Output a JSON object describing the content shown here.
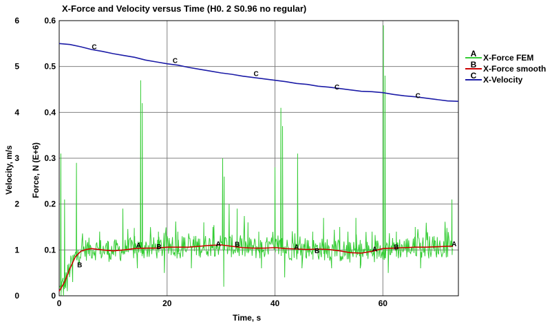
{
  "chart_data": {
    "type": "line",
    "title": "X-Force and Velocity versus Time (H0. 2  S0.96 no  regular)",
    "xlabel": "Time, s",
    "ylabel_left": "Velocity, m/s",
    "ylabel_right": "Force, N  (E+6)",
    "xlim": [
      0,
      74
    ],
    "ylim_left": [
      0,
      6
    ],
    "ylim_right": [
      0,
      0.6
    ],
    "x_ticks": [
      "0",
      "20",
      "40",
      "60"
    ],
    "y_left_ticks": [
      "0",
      "1",
      "2",
      "3",
      "4",
      "5",
      "6"
    ],
    "y_right_ticks": [
      "0",
      "0.1",
      "0.2",
      "0.3",
      "0.4",
      "0.5",
      "0.6"
    ],
    "grid": true,
    "legend_position": "right",
    "series": [
      {
        "name": "X-Force FEM",
        "marker": "A",
        "color": "#33cc33",
        "axis": "right",
        "spikes": [
          [
            0.3,
            0.31
          ],
          [
            1.0,
            0.21
          ],
          [
            3.2,
            0.29
          ],
          [
            7.5,
            0.14
          ],
          [
            9.0,
            0.12
          ],
          [
            11.8,
            0.19
          ],
          [
            14.0,
            0.13
          ],
          [
            15.1,
            0.47
          ],
          [
            15.4,
            0.42
          ],
          [
            18.4,
            0.14
          ],
          [
            22.0,
            0.14
          ],
          [
            25.0,
            0.13
          ],
          [
            26.8,
            0.16
          ],
          [
            28.5,
            0.15
          ],
          [
            30.3,
            0.3
          ],
          [
            30.6,
            0.26
          ],
          [
            31.5,
            0.2
          ],
          [
            33.0,
            0.19
          ],
          [
            35.0,
            0.16
          ],
          [
            37.0,
            0.14
          ],
          [
            40.0,
            0.28
          ],
          [
            41.1,
            0.41
          ],
          [
            41.4,
            0.37
          ],
          [
            44.2,
            0.31
          ],
          [
            47.0,
            0.14
          ],
          [
            49.0,
            0.17
          ],
          [
            52.0,
            0.15
          ],
          [
            55.0,
            0.17
          ],
          [
            58.0,
            0.14
          ],
          [
            60.1,
            0.59
          ],
          [
            60.4,
            0.48
          ],
          [
            62.5,
            0.14
          ],
          [
            66.0,
            0.15
          ],
          [
            69.5,
            0.13
          ],
          [
            72.8,
            0.21
          ]
        ],
        "dips": [
          [
            0.8,
            0.0
          ],
          [
            1.5,
            0.01
          ],
          [
            2.5,
            0.03
          ],
          [
            14.5,
            0.06
          ],
          [
            19.5,
            0.05
          ],
          [
            24.5,
            0.06
          ],
          [
            30.5,
            0.02
          ],
          [
            37.5,
            0.06
          ],
          [
            41.8,
            0.04
          ],
          [
            45.0,
            0.06
          ],
          [
            50.5,
            0.06
          ],
          [
            55.8,
            0.06
          ],
          [
            61.0,
            0.05
          ],
          [
            67.0,
            0.06
          ]
        ],
        "baseline_label_points": [
          [
            14.7,
            0.111
          ],
          [
            29.5,
            0.114
          ],
          [
            44.0,
            0.107
          ],
          [
            58.5,
            0.103
          ],
          [
            73.2,
            0.114
          ]
        ]
      },
      {
        "name": "X-Force smooth",
        "marker": "B",
        "color": "#cc0000",
        "axis": "right",
        "points": [
          [
            0,
            0.01
          ],
          [
            1,
            0.03
          ],
          [
            2,
            0.06
          ],
          [
            3,
            0.085
          ],
          [
            4,
            0.097
          ],
          [
            5,
            0.101
          ],
          [
            6,
            0.103
          ],
          [
            8,
            0.1
          ],
          [
            10,
            0.098
          ],
          [
            12,
            0.1
          ],
          [
            14,
            0.103
          ],
          [
            16,
            0.104
          ],
          [
            18,
            0.104
          ],
          [
            20,
            0.106
          ],
          [
            22,
            0.106
          ],
          [
            24,
            0.106
          ],
          [
            26,
            0.108
          ],
          [
            28,
            0.11
          ],
          [
            30,
            0.111
          ],
          [
            32,
            0.108
          ],
          [
            34,
            0.105
          ],
          [
            36,
            0.104
          ],
          [
            38,
            0.104
          ],
          [
            40,
            0.105
          ],
          [
            42,
            0.103
          ],
          [
            44,
            0.102
          ],
          [
            46,
            0.101
          ],
          [
            48,
            0.102
          ],
          [
            50,
            0.101
          ],
          [
            52,
            0.098
          ],
          [
            54,
            0.094
          ],
          [
            56,
            0.093
          ],
          [
            58,
            0.097
          ],
          [
            60,
            0.103
          ],
          [
            62,
            0.104
          ],
          [
            64,
            0.105
          ],
          [
            66,
            0.106
          ],
          [
            68,
            0.106
          ],
          [
            70,
            0.107
          ],
          [
            72,
            0.108
          ],
          [
            73,
            0.108
          ]
        ],
        "label_points": [
          [
            3.8,
            0.068
          ],
          [
            18.5,
            0.108
          ],
          [
            33.0,
            0.113
          ],
          [
            47.8,
            0.099
          ],
          [
            62.5,
            0.107
          ]
        ]
      },
      {
        "name": "X-Velocity",
        "marker": "C",
        "color": "#1a1aa6",
        "axis": "left",
        "points": [
          [
            0,
            5.5
          ],
          [
            2,
            5.48
          ],
          [
            4,
            5.43
          ],
          [
            6,
            5.37
          ],
          [
            8,
            5.33
          ],
          [
            10,
            5.28
          ],
          [
            12,
            5.24
          ],
          [
            14,
            5.2
          ],
          [
            16,
            5.14
          ],
          [
            18,
            5.1
          ],
          [
            20,
            5.06
          ],
          [
            22,
            5.03
          ],
          [
            24,
            4.98
          ],
          [
            26,
            4.94
          ],
          [
            28,
            4.9
          ],
          [
            30,
            4.86
          ],
          [
            32,
            4.83
          ],
          [
            34,
            4.79
          ],
          [
            36,
            4.76
          ],
          [
            38,
            4.73
          ],
          [
            40,
            4.7
          ],
          [
            42,
            4.67
          ],
          [
            44,
            4.63
          ],
          [
            46,
            4.61
          ],
          [
            48,
            4.57
          ],
          [
            50,
            4.55
          ],
          [
            52,
            4.52
          ],
          [
            54,
            4.49
          ],
          [
            56,
            4.46
          ],
          [
            58,
            4.45
          ],
          [
            60,
            4.43
          ],
          [
            62,
            4.39
          ],
          [
            64,
            4.36
          ],
          [
            66,
            4.34
          ],
          [
            68,
            4.31
          ],
          [
            70,
            4.28
          ],
          [
            72,
            4.25
          ],
          [
            74,
            4.24
          ]
        ],
        "label_points": [
          [
            6.5,
            5.44
          ],
          [
            21.5,
            5.14
          ],
          [
            36.5,
            4.85
          ],
          [
            51.5,
            4.56
          ],
          [
            66.5,
            4.37
          ]
        ]
      }
    ]
  }
}
